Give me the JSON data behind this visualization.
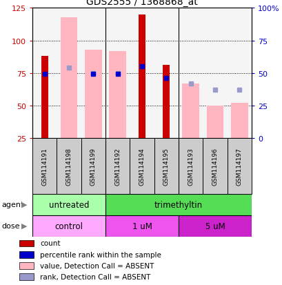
{
  "title": "GDS2555 / 1368868_at",
  "samples": [
    "GSM114191",
    "GSM114198",
    "GSM114199",
    "GSM114192",
    "GSM114194",
    "GSM114195",
    "GSM114193",
    "GSM114196",
    "GSM114197"
  ],
  "count_values": [
    88,
    null,
    null,
    null,
    120,
    81,
    null,
    null,
    null
  ],
  "rank_values": [
    74,
    null,
    74,
    74,
    80,
    71,
    null,
    null,
    null
  ],
  "absent_value_bars": [
    null,
    118,
    93,
    92,
    null,
    null,
    67,
    50,
    52
  ],
  "absent_rank_dots": [
    null,
    79,
    75,
    75,
    null,
    null,
    67,
    62,
    62
  ],
  "ylim_left": [
    25,
    125
  ],
  "ylim_right": [
    0,
    100
  ],
  "yticks_left": [
    25,
    50,
    75,
    100,
    125
  ],
  "ytick_labels_left": [
    "25",
    "50",
    "75",
    "100",
    "125"
  ],
  "yticks_right": [
    0,
    25,
    50,
    75,
    100
  ],
  "ytick_labels_right": [
    "0",
    "25",
    "50",
    "75",
    "100%"
  ],
  "agent_groups": [
    {
      "label": "untreated",
      "start": 0,
      "end": 3,
      "color": "#aaffaa"
    },
    {
      "label": "trimethyltin",
      "start": 3,
      "end": 9,
      "color": "#55dd55"
    }
  ],
  "dose_groups": [
    {
      "label": "control",
      "start": 0,
      "end": 3,
      "color": "#ffaaff"
    },
    {
      "label": "1 uM",
      "start": 3,
      "end": 6,
      "color": "#ee55ee"
    },
    {
      "label": "5 uM",
      "start": 6,
      "end": 9,
      "color": "#cc22cc"
    }
  ],
  "count_color": "#cc0000",
  "rank_color": "#0000cc",
  "absent_value_color": "#ffb6c1",
  "absent_rank_color": "#9999cc",
  "bg_color": "#ffffff",
  "plot_bg": "#f5f5f5",
  "sample_box_color": "#cccccc",
  "legend_items": [
    {
      "label": "count",
      "color": "#cc0000"
    },
    {
      "label": "percentile rank within the sample",
      "color": "#0000cc"
    },
    {
      "label": "value, Detection Call = ABSENT",
      "color": "#ffb6c1"
    },
    {
      "label": "rank, Detection Call = ABSENT",
      "color": "#9999cc"
    }
  ]
}
